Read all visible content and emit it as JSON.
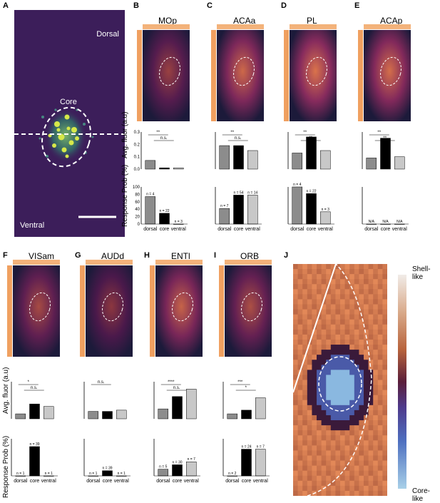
{
  "panel_letters": [
    "A",
    "B",
    "C",
    "D",
    "E",
    "F",
    "G",
    "H",
    "I",
    "J"
  ],
  "panel_a": {
    "dorsal": "Dorsal",
    "ventral": "Ventral",
    "core": "Core"
  },
  "panel_j": {
    "top": "Shell-like",
    "bottom": "Core-like"
  },
  "y_labels": {
    "fluor": "Avg. fluor (a.u)",
    "prob": "Response Prob (%)"
  },
  "colors": {
    "dorsal": "#8c8c8c",
    "core": "#000000",
    "ventral": "#c8c8c8",
    "bg_purple": "#3c1e5a"
  },
  "regions": [
    {
      "title": "MOp",
      "fluor_sig": [
        "**",
        "n.s."
      ],
      "n_labels": [
        "n = 4",
        "n = 22",
        "n = 3"
      ]
    },
    {
      "title": "ACAa",
      "fluor_sig": [
        "**",
        "n.s."
      ],
      "n_labels": [
        "n = 7",
        "n = 54",
        "n = 14"
      ]
    },
    {
      "title": "PL",
      "fluor_sig": [
        "**",
        "**"
      ],
      "n_labels": [
        "n = 4",
        "n = 22",
        "n = 3"
      ]
    },
    {
      "title": "ACAp",
      "fluor_sig": [
        "**",
        "**"
      ],
      "n_labels": [
        "N/A",
        "N/A",
        "N/A"
      ]
    },
    {
      "title": "VISam",
      "fluor_sig": [
        "*",
        "n.s."
      ],
      "n_labels": [
        "n = 1",
        "n = 39",
        "n = 1"
      ]
    },
    {
      "title": "AUDd",
      "fluor_sig": [
        "n.s."
      ],
      "n_labels": [
        "n = 1",
        "n = 39",
        "n = 1"
      ]
    },
    {
      "title": "ENTl",
      "fluor_sig": [
        "****",
        "n.s."
      ],
      "n_labels": [
        "n = 5",
        "n = 30",
        "n = 7"
      ]
    },
    {
      "title": "ORB",
      "fluor_sig": [
        "***",
        "*"
      ],
      "n_labels": [
        "n = 2",
        "n = 24",
        "n = 7"
      ]
    }
  ],
  "chart_data": [
    {
      "type": "bar",
      "title": "MOp fluorescence",
      "categories": [
        "dorsal",
        "core",
        "ventral"
      ],
      "values": [
        0.07,
        0.01,
        0.01
      ],
      "ylabel": "Avg. fluor (a.u)",
      "ylim": [
        0,
        0.3
      ],
      "yticks": [
        "0.0",
        "0.1",
        "0.2",
        "0.3"
      ]
    },
    {
      "type": "bar",
      "title": "MOp response",
      "categories": [
        "dorsal",
        "core",
        "ventral"
      ],
      "values": [
        74,
        29,
        0
      ],
      "ylabel": "Response Prob (%)",
      "ylim": [
        0,
        100
      ],
      "yticks": [
        "0",
        "20",
        "40",
        "60",
        "80",
        "100"
      ]
    },
    {
      "type": "bar",
      "title": "ACAa fluorescence",
      "categories": [
        "dorsal",
        "core",
        "ventral"
      ],
      "values": [
        0.19,
        0.19,
        0.15
      ],
      "ylim": [
        0,
        0.3
      ]
    },
    {
      "type": "bar",
      "title": "ACAa response",
      "categories": [
        "dorsal",
        "core",
        "ventral"
      ],
      "values": [
        42,
        78,
        78
      ],
      "ylim": [
        0,
        100
      ]
    },
    {
      "type": "bar",
      "title": "PL fluorescence",
      "categories": [
        "dorsal",
        "core",
        "ventral"
      ],
      "values": [
        0.13,
        0.26,
        0.15
      ],
      "ylim": [
        0,
        0.3
      ]
    },
    {
      "type": "bar",
      "title": "PL response",
      "categories": [
        "dorsal",
        "core",
        "ventral"
      ],
      "values": [
        100,
        82,
        33
      ],
      "ylim": [
        0,
        100
      ]
    },
    {
      "type": "bar",
      "title": "ACAp fluorescence",
      "categories": [
        "dorsal",
        "core",
        "ventral"
      ],
      "values": [
        0.09,
        0.25,
        0.1
      ],
      "ylim": [
        0,
        0.3
      ]
    },
    {
      "type": "bar",
      "title": "ACAp response",
      "categories": [
        "dorsal",
        "core",
        "ventral"
      ],
      "values": [
        0,
        0,
        0
      ],
      "ylim": [
        0,
        100
      ]
    },
    {
      "type": "bar",
      "title": "VISam fluorescence",
      "categories": [
        "dorsal",
        "core",
        "ventral"
      ],
      "values": [
        0.04,
        0.12,
        0.1
      ],
      "ylim": [
        0,
        0.3
      ]
    },
    {
      "type": "bar",
      "title": "VISam response",
      "categories": [
        "dorsal",
        "core",
        "ventral"
      ],
      "values": [
        0,
        79,
        0
      ],
      "ylim": [
        0,
        100
      ]
    },
    {
      "type": "bar",
      "title": "AUDd fluorescence",
      "categories": [
        "dorsal",
        "core",
        "ventral"
      ],
      "values": [
        0.06,
        0.06,
        0.07
      ],
      "ylim": [
        0,
        0.3
      ]
    },
    {
      "type": "bar",
      "title": "AUDd response",
      "categories": [
        "dorsal",
        "core",
        "ventral"
      ],
      "values": [
        0,
        14,
        0
      ],
      "ylim": [
        0,
        100
      ]
    },
    {
      "type": "bar",
      "title": "ENTl fluorescence",
      "categories": [
        "dorsal",
        "core",
        "ventral"
      ],
      "values": [
        0.08,
        0.18,
        0.24
      ],
      "ylim": [
        0,
        0.3
      ]
    },
    {
      "type": "bar",
      "title": "ENTl response",
      "categories": [
        "dorsal",
        "core",
        "ventral"
      ],
      "values": [
        18,
        30,
        38
      ],
      "ylim": [
        0,
        100
      ]
    },
    {
      "type": "bar",
      "title": "ORB fluorescence",
      "categories": [
        "dorsal",
        "core",
        "ventral"
      ],
      "values": [
        0.04,
        0.07,
        0.17
      ],
      "ylim": [
        0,
        0.3
      ]
    },
    {
      "type": "bar",
      "title": "ORB response",
      "categories": [
        "dorsal",
        "core",
        "ventral"
      ],
      "values": [
        0,
        72,
        72
      ],
      "ylim": [
        0,
        100
      ]
    }
  ]
}
